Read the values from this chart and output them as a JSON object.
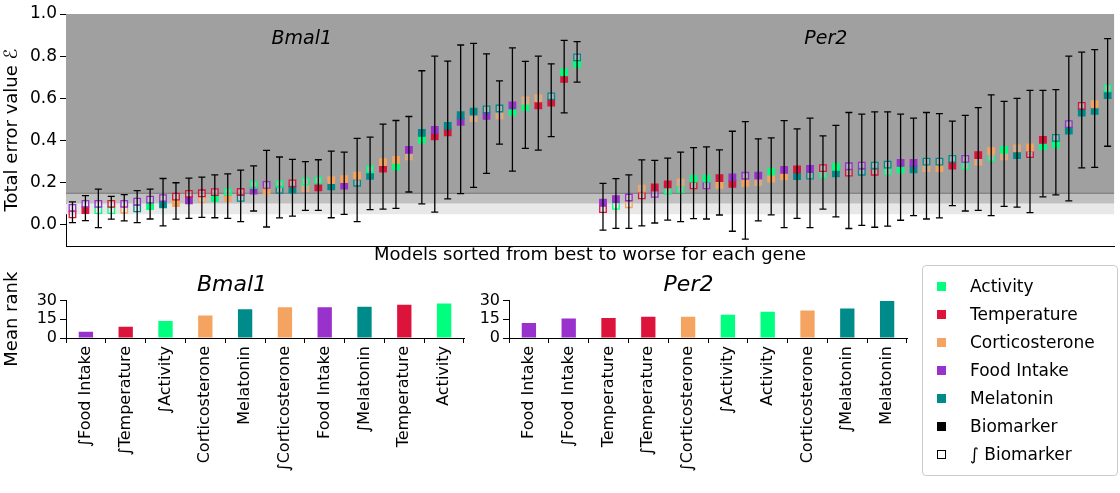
{
  "chart_data": [
    {
      "type": "scatter",
      "xlabel": "Models sorted from best to worse for each gene",
      "ylabel": "Total error value ℰ",
      "ylim": [
        -0.1,
        1.0
      ],
      "yticks": [
        {
          "value": 0,
          "label": "0.0"
        },
        0.2,
        0.4,
        0.6,
        0.8,
        {
          "value": 1,
          "label": "1.0"
        }
      ],
      "tick_labels": "y",
      "marker": "square",
      "categories": [
        null,
        null,
        null,
        null,
        null,
        null,
        null,
        null,
        null,
        null,
        null,
        null,
        null,
        null,
        null,
        null,
        null,
        null,
        null,
        null,
        null,
        null,
        null,
        null,
        null,
        null,
        null,
        null,
        null,
        null,
        null,
        null,
        null,
        null,
        null,
        null,
        null,
        null,
        null,
        null,
        null,
        null,
        null,
        null,
        null,
        null,
        null,
        null,
        null,
        null,
        null,
        null,
        null,
        null,
        null,
        null,
        null,
        null,
        null,
        null,
        null,
        null,
        null,
        null,
        null,
        null,
        null,
        null,
        null,
        null,
        null,
        null,
        null,
        null,
        null,
        null,
        null,
        null,
        null,
        null,
        null
      ],
      "bands": [
        {
          "axis": "y",
          "from": 0.15,
          "to": 1.0,
          "color": "#a0a0a0"
        },
        {
          "axis": "y",
          "from": 0.1,
          "to": 0.15,
          "color": "#c0c0c0"
        },
        {
          "axis": "y",
          "from": 0.05,
          "to": 0.1,
          "color": "#e8e8e8"
        }
      ],
      "ref_lines": [
        {
          "axis": "y",
          "value": 0.15,
          "color": "#707070"
        }
      ],
      "annotations": [
        "Bmal1",
        "Per2"
      ],
      "series": [
        {
          "values": [
            null,
            null,
            null,
            null,
            null,
            null,
            null,
            null,
            null,
            null,
            null,
            null,
            null,
            null,
            null,
            null,
            null,
            null,
            null,
            null,
            0.212,
            0.217,
            0.233,
            null,
            0.298,
            0.308,
            0.356,
            0.436,
            0.45,
            0.47,
            0.52,
            0.537,
            null,
            null,
            0.567,
            null,
            null,
            null,
            0.723,
            null,
            null,
            0.106,
            0.122,
            null,
            null,
            0.178,
            0.192,
            null,
            0.219,
            0.219,
            0.222,
            0.225,
            null,
            0.234,
            0.253,
            0.261,
            0.263,
            0.266,
            null,
            0.275,
            null,
            null,
            null,
            null,
            0.294,
            0.294,
            null,
            null,
            null,
            null,
            0.331,
            0.35,
            0.356,
            null,
            0.367,
            0.403,
            null,
            null,
            null,
            0.572,
            null
          ],
          "colors": [
            null,
            null,
            null,
            null,
            null,
            null,
            null,
            null,
            null,
            null,
            null,
            null,
            null,
            null,
            null,
            null,
            null,
            null,
            null,
            null,
            "#f4a460",
            "#f4a460",
            "#f4a460",
            null,
            "#f4a460",
            "#f4a460",
            "#9932cc",
            "#008b8b",
            "#9932cc",
            "#008b8b",
            "#008b8b",
            "#008b8b",
            null,
            null,
            "#9932cc",
            null,
            null,
            null,
            "#00ff7f",
            null,
            null,
            "#9932cc",
            "#9932cc",
            null,
            null,
            "#dc143c",
            "#dc143c",
            null,
            "#00ff7f",
            "#00ff7f",
            "#dc143c",
            "#9932cc",
            null,
            "#9932cc",
            "#00ff7f",
            "#9932cc",
            "#dc143c",
            "#9932cc",
            null,
            "#00ff7f",
            null,
            null,
            null,
            null,
            "#9932cc",
            "#9932cc",
            null,
            null,
            null,
            null,
            "#dc143c",
            "#f4a460",
            "#00ff7f",
            null,
            "#f4a460",
            "#dc143c",
            null,
            null,
            null,
            "#f4a460",
            null
          ],
          "errors": [
            null,
            null,
            null,
            null,
            null,
            null,
            null,
            null,
            null,
            null,
            null,
            null,
            null,
            null,
            null,
            null,
            null,
            null,
            null,
            null,
            [
              0.034,
              0.35
            ],
            [
              0.05,
              0.345
            ],
            [
              0.016,
              0.41
            ],
            null,
            [
              0.075,
              0.478
            ],
            [
              0.078,
              0.495
            ],
            [
              0.156,
              0.514
            ],
            [
              0.1,
              0.731
            ],
            [
              0.061,
              0.8
            ],
            [
              0.123,
              0.777
            ],
            [
              0.148,
              0.853
            ],
            [
              0.178,
              0.861
            ],
            null,
            null,
            [
              0.255,
              0.839
            ],
            null,
            null,
            null,
            [
              0.531,
              0.875
            ],
            null,
            null,
            [
              -0.025,
              0.197
            ],
            [
              -0.016,
              0.219
            ],
            null,
            null,
            [
              0.009,
              0.306
            ],
            [
              0.023,
              0.317
            ],
            null,
            [
              0.03,
              0.366
            ],
            [
              0.028,
              0.37
            ],
            [
              0.047,
              0.356
            ],
            [
              -0.03,
              0.444
            ],
            null,
            [
              0.019,
              0.408
            ],
            [
              0.048,
              0.413
            ],
            [
              -0.013,
              0.494
            ],
            [
              0.031,
              0.455
            ],
            [
              -0.013,
              0.506
            ],
            null,
            [
              0.038,
              0.472
            ],
            null,
            null,
            null,
            null,
            [
              0.022,
              0.525
            ],
            [
              0.044,
              0.506
            ],
            null,
            null,
            null,
            null,
            [
              0.069,
              0.556
            ],
            [
              0.044,
              0.617
            ],
            [
              0.088,
              0.586
            ],
            null,
            [
              0.058,
              0.638
            ],
            [
              0.133,
              0.638
            ],
            null,
            null,
            null,
            [
              0.273,
              0.831
            ],
            null
          ]
        },
        {
          "values": [
            0.081,
            0.1,
            0.1,
            0.1,
            0.1,
            0.11,
            0.12,
            0.127,
            0.134,
            0.147,
            0.15,
            0.155,
            0.155,
            0.156,
            0.19,
            0.19,
            0.195,
            0.197,
            0.206,
            0.21,
            null,
            null,
            null,
            0.264,
            null,
            null,
            null,
            null,
            null,
            null,
            null,
            null,
            0.548,
            0.552,
            null,
            0.59,
            0.6,
            0.609,
            null,
            0.794,
            null,
            null,
            null,
            0.13,
            0.172,
            null,
            null,
            0.202,
            null,
            null,
            null,
            null,
            0.233,
            null,
            null,
            null,
            null,
            null,
            0.269,
            null,
            0.278,
            0.281,
            0.281,
            0.286,
            null,
            null,
            0.3,
            0.3,
            0.313,
            0.313,
            null,
            null,
            null,
            0.363,
            null,
            null,
            0.413,
            0.478,
            0.564,
            null,
            0.647
          ],
          "colors": [
            "#9932cc",
            "#9932cc",
            "#9932cc",
            "#dc143c",
            "#9932cc",
            "#9932cc",
            "#9932cc",
            "#9932cc",
            "#dc143c",
            "#dc143c",
            "#dc143c",
            "#dc143c",
            "#00ff7f",
            "#dc143c",
            "#00ff7f",
            "#9932cc",
            "#00ff7f",
            "#dc143c",
            "#00ff7f",
            "#00ff7f",
            null,
            null,
            null,
            "#00ff7f",
            null,
            null,
            null,
            null,
            null,
            null,
            null,
            null,
            "#008b8b",
            "#008b8b",
            null,
            "#f4a460",
            "#f4a460",
            "#008b8b",
            null,
            "#008b8b",
            null,
            null,
            null,
            "#9932cc",
            "#f4a460",
            null,
            null,
            "#f4a460",
            null,
            null,
            null,
            null,
            "#9932cc",
            null,
            null,
            null,
            null,
            null,
            "#dc143c",
            null,
            "#9932cc",
            "#9932cc",
            "#008b8b",
            "#008b8b",
            null,
            null,
            "#008b8b",
            "#008b8b",
            "#008b8b",
            "#9932cc",
            null,
            null,
            null,
            "#f4a460",
            null,
            null,
            "#008b8b",
            "#9932cc",
            "#dc143c",
            null,
            "#00ff7f"
          ],
          "errors": [
            null,
            [
              0.02,
              0.139
            ],
            [
              -0.013,
              0.17
            ],
            null,
            [
              0.019,
              0.144
            ],
            [
              0.011,
              0.163
            ],
            [
              0.028,
              0.17
            ],
            [
              -0.005,
              0.22
            ],
            [
              0.027,
              0.2
            ],
            [
              0.031,
              0.222
            ],
            [
              0.036,
              0.227
            ],
            [
              0.034,
              0.237
            ],
            [
              0.031,
              0.242
            ],
            [
              0.016,
              0.26
            ],
            [
              0.066,
              0.28
            ],
            [
              -0.01,
              0.353
            ],
            [
              0.033,
              0.322
            ],
            [
              0.042,
              0.311
            ],
            [
              0.069,
              0.3
            ],
            [
              0.069,
              0.309
            ],
            null,
            null,
            null,
            [
              0.072,
              0.416
            ],
            null,
            null,
            null,
            null,
            null,
            null,
            null,
            null,
            [
              0.244,
              0.811
            ],
            [
              0.383,
              0.683
            ],
            null,
            [
              0.363,
              0.775
            ],
            [
              0.355,
              0.8
            ],
            [
              0.419,
              0.764
            ],
            null,
            [
              0.677,
              0.869
            ],
            null,
            null,
            null,
            [
              -0.016,
              0.237
            ],
            [
              -0.005,
              0.308
            ],
            null,
            null,
            [
              0.016,
              0.345
            ],
            null,
            null,
            null,
            null,
            [
              -0.067,
              0.49
            ],
            null,
            null,
            null,
            null,
            null,
            [
              0.075,
              0.422
            ],
            null,
            [
              -0.017,
              0.533
            ],
            [
              -0.002,
              0.525
            ],
            [
              -0.011,
              0.536
            ],
            [
              -0.006,
              0.536
            ],
            null,
            null,
            [
              0.028,
              0.533
            ],
            [
              0.033,
              0.528
            ],
            [
              0.091,
              0.492
            ],
            [
              0.066,
              0.519
            ],
            null,
            null,
            null,
            [
              0.084,
              0.6
            ],
            null,
            null,
            [
              0.142,
              0.641
            ],
            [
              0.114,
              0.8
            ],
            [
              0.27,
              0.819
            ],
            null,
            [
              0.373,
              0.883
            ]
          ]
        },
        {
          "values": [
            null,
            0.07,
            null,
            null,
            null,
            null,
            0.089,
            0.097,
            0.103,
            0.117,
            null,
            0.127,
            0.127,
            null,
            0.163,
            0.163,
            null,
            0.167,
            null,
            0.178,
            0.183,
            0.186,
            null,
            0.233,
            0.267,
            0.277,
            null,
            0.405,
            0.42,
            0.439,
            0.489,
            null,
            0.517,
            null,
            0.536,
            0.559,
            0.567,
            0.58,
            0.692,
            0.764,
            null,
            null,
            null,
            null,
            null,
            null,
            null,
            null,
            null,
            null,
            0.19,
            0.195,
            0.2,
            null,
            0.22,
            0.23,
            0.231,
            null,
            null,
            0.244,
            null,
            null,
            null,
            null,
            0.263,
            0.264,
            null,
            0.269,
            0.281,
            null,
            null,
            null,
            null,
            0.331,
            null,
            0.372,
            0.381,
            0.447,
            0.533,
            0.541,
            0.616
          ],
          "colors": [
            null,
            "#dc143c",
            null,
            null,
            null,
            null,
            "#00ff7f",
            "#008b8b",
            "#f4a460",
            "#9932cc",
            null,
            "#00ff7f",
            "#f4a460",
            null,
            "#9932cc",
            "#f4a460",
            null,
            "#008b8b",
            null,
            "#dc143c",
            "#008b8b",
            "#9932cc",
            null,
            "#008b8b",
            "#dc143c",
            "#00ff7f",
            null,
            "#00ff7f",
            "#dc143c",
            "#dc143c",
            "#9932cc",
            null,
            "#9932cc",
            null,
            "#00ff7f",
            "#00ff7f",
            "#dc143c",
            "#dc143c",
            "#dc143c",
            "#00ff7f",
            null,
            null,
            null,
            null,
            null,
            null,
            null,
            null,
            null,
            null,
            "#f4a460",
            "#dc143c",
            "#f4a460",
            null,
            "#f4a460",
            "#f4a460",
            "#008b8b",
            null,
            null,
            "#008b8b",
            null,
            null,
            null,
            null,
            "#00ff7f",
            "#008b8b",
            null,
            "#f4a460",
            "#dc143c",
            null,
            null,
            null,
            null,
            "#008b8b",
            null,
            "#00ff7f",
            "#00ff7f",
            "#008b8b",
            "#008b8b",
            "#008b8b",
            "#008b8b"
          ]
        },
        {
          "values": [
            0.05,
            null,
            0.07,
            0.07,
            0.072,
            0.078,
            null,
            null,
            null,
            null,
            0.122,
            null,
            null,
            0.128,
            null,
            null,
            0.166,
            null,
            0.175,
            null,
            null,
            null,
            0.2,
            null,
            null,
            null,
            0.325,
            null,
            null,
            null,
            null,
            0.506,
            null,
            0.52,
            null,
            null,
            null,
            null,
            null,
            null,
            null,
            0.075,
            0.09,
            0.098,
            0.14,
            0.147,
            0.161,
            0.17,
            0.187,
            0.187,
            null,
            null,
            null,
            0.203,
            null,
            null,
            null,
            0.234,
            0.238,
            null,
            0.248,
            0.252,
            0.252,
            0.255,
            null,
            null,
            0.269,
            null,
            null,
            0.28,
            0.3,
            0.319,
            0.325,
            null,
            0.336,
            null,
            null,
            null,
            null,
            null,
            null
          ],
          "colors": [
            "#dc143c",
            null,
            "#00ff7f",
            "#00ff7f",
            "#f4a460",
            "#008b8b",
            null,
            null,
            null,
            null,
            "#f4a460",
            null,
            null,
            "#008b8b",
            null,
            null,
            "#008b8b",
            null,
            "#f4a460",
            null,
            null,
            null,
            "#008b8b",
            null,
            null,
            null,
            "#f4a460",
            null,
            null,
            null,
            null,
            "#f4a460",
            null,
            "#f4a460",
            null,
            null,
            null,
            null,
            null,
            null,
            null,
            "#dc143c",
            "#00ff7f",
            "#f4a460",
            "#dc143c",
            "#9932cc",
            "#00ff7f",
            "#00ff7f",
            "#dc143c",
            "#9932cc",
            null,
            null,
            null,
            "#f4a460",
            null,
            null,
            null,
            "#008b8b",
            "#00ff7f",
            null,
            "#dc143c",
            "#008b8b",
            "#dc143c",
            "#00ff7f",
            null,
            null,
            "#f4a460",
            null,
            null,
            "#00ff7f",
            "#f4a460",
            "#00ff7f",
            "#f4a460",
            null,
            "#dc143c",
            null,
            null,
            null,
            null,
            null,
            null
          ],
          "errors": [
            [
              0.011,
              0.109
            ],
            null,
            null,
            [
              0.027,
              0.135
            ],
            null,
            null,
            null,
            null,
            null,
            null,
            null,
            null,
            null,
            null,
            null,
            null,
            null,
            null,
            null,
            null,
            null,
            null,
            null,
            null,
            null,
            null,
            null,
            null,
            null,
            null,
            null,
            null,
            null,
            null,
            null,
            null,
            null,
            null,
            null,
            null,
            null,
            null,
            null,
            null,
            null,
            null,
            null,
            null,
            null,
            null,
            null,
            null,
            null,
            null,
            null,
            null,
            null,
            null,
            null,
            null,
            null,
            null,
            null,
            null,
            null,
            null,
            null,
            null,
            null,
            null,
            null,
            null,
            null,
            null,
            null,
            null,
            null,
            null,
            null,
            null,
            null
          ]
        }
      ]
    },
    {
      "type": "bar",
      "title": "Bmal1",
      "ylabel": "Mean rank",
      "categories": [
        "∫Food Intake",
        "∫Temperature",
        "∫Activity",
        "Corticosterone",
        "Melatonin",
        "∫Corticosterone",
        "Food Intake",
        "∫Melatonin",
        "Temperature",
        "Activity"
      ],
      "values": [
        5,
        9,
        13.5,
        18,
        23,
        24.5,
        24.5,
        25,
        26.5,
        27.5
      ],
      "colors": [
        "#9932cc",
        "#dc143c",
        "#00ff7f",
        "#f4a460",
        "#008b8b",
        "#f4a460",
        "#9932cc",
        "#008b8b",
        "#dc143c",
        "#00ff7f"
      ],
      "ylim": [
        0,
        30
      ],
      "yticks": [
        0,
        15,
        30
      ]
    },
    {
      "type": "bar",
      "title": "Per2",
      "categories": [
        "Food Intake",
        "∫Food Intake",
        "Temperature",
        "∫Temperature",
        "∫Corticosterone",
        "∫Activity",
        "Activity",
        "Corticosterone",
        "∫Melatonin",
        "Melatonin"
      ],
      "values": [
        12,
        15.5,
        16,
        17,
        17,
        18.5,
        21,
        22,
        23.5,
        29.5
      ],
      "colors": [
        "#9932cc",
        "#9932cc",
        "#dc143c",
        "#dc143c",
        "#f4a460",
        "#00ff7f",
        "#00ff7f",
        "#f4a460",
        "#008b8b",
        "#008b8b"
      ],
      "ylim": [
        0,
        30
      ],
      "yticks": [
        0,
        15,
        30
      ]
    },
    {
      "type": "other",
      "annotations": [
        "Activity",
        "Temperature",
        "Corticosterone",
        "Food Intake",
        "Melatonin",
        "Biomarker",
        "∫ Biomarker"
      ],
      "colors": [
        "#00ff7f",
        "#dc143c",
        "#f4a460",
        "#9932cc",
        "#008b8b",
        "#000000",
        null
      ]
    }
  ]
}
